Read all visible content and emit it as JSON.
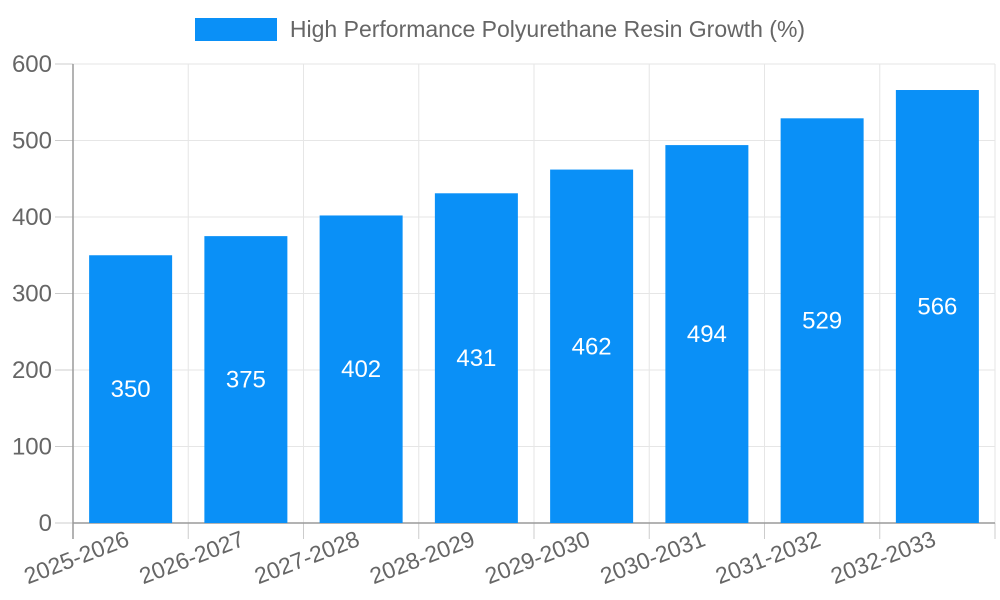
{
  "legend": {
    "label": "High Performance Polyurethane Resin Growth (%)"
  },
  "chart_data": {
    "type": "bar",
    "title": "",
    "series_name": "High Performance Polyurethane Resin Growth (%)",
    "categories": [
      "2025-2026",
      "2026-2027",
      "2027-2028",
      "2028-2029",
      "2029-2030",
      "2030-2031",
      "2031-2032",
      "2032-2033"
    ],
    "values": [
      350,
      375,
      402,
      431,
      462,
      494,
      529,
      566
    ],
    "xlabel": "",
    "ylabel": "",
    "ylim": [
      0,
      600
    ],
    "y_ticks": [
      0,
      100,
      200,
      300,
      400,
      500,
      600
    ],
    "grid": true,
    "legend_position": "top",
    "x_label_rotation_deg": -21,
    "colors": {
      "bar": "#0a90f7",
      "value_label": "#ffffff",
      "axis_line": "#9a9a9a",
      "tick_mark": "#cccccc",
      "gridline": "#e6e6e6",
      "tick_label": "#666666"
    }
  }
}
